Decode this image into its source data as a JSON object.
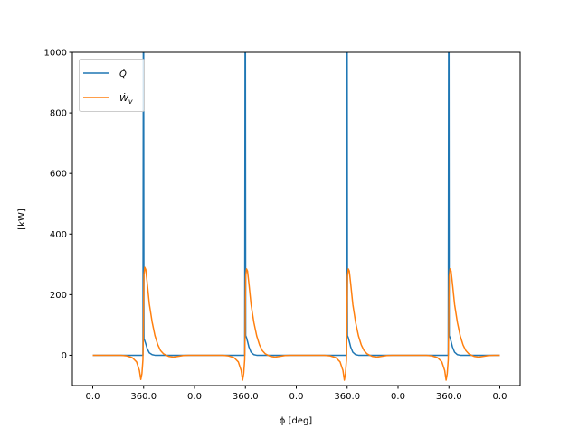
{
  "chart_data": {
    "type": "line",
    "title": "",
    "xlabel": "ϕ [deg]",
    "ylabel": "[kW]",
    "xlim": [
      -144,
      3024
    ],
    "ylim": [
      -100,
      1000
    ],
    "grid": false,
    "legend_position": "top-left",
    "x_ticks": [
      0,
      360,
      720,
      1080,
      1440,
      1800,
      2160,
      2520,
      2880
    ],
    "x_tick_labels": [
      "0.0",
      "360.0",
      "0.0",
      "360.0",
      "0.0",
      "360.0",
      "0.0",
      "360.0",
      "0.0"
    ],
    "y_ticks": [
      0,
      200,
      400,
      600,
      800,
      1000
    ],
    "y_tick_labels": [
      "0",
      "200",
      "400",
      "600",
      "800",
      "1000"
    ],
    "x": [
      0,
      100,
      200,
      240,
      280,
      310,
      330,
      340,
      348,
      355,
      358,
      360,
      362,
      368,
      375,
      385,
      400,
      420,
      440,
      460,
      480,
      500,
      520,
      540,
      570,
      600,
      640,
      680,
      720,
      820,
      920,
      960,
      1000,
      1030,
      1050,
      1060,
      1068,
      1075,
      1078,
      1080,
      1082,
      1088,
      1095,
      1105,
      1120,
      1140,
      1160,
      1180,
      1200,
      1220,
      1240,
      1260,
      1290,
      1320,
      1360,
      1400,
      1440,
      1540,
      1640,
      1680,
      1720,
      1750,
      1770,
      1780,
      1788,
      1795,
      1798,
      1800,
      1802,
      1808,
      1815,
      1825,
      1840,
      1860,
      1880,
      1900,
      1920,
      1940,
      1960,
      1980,
      2010,
      2040,
      2080,
      2120,
      2160,
      2260,
      2360,
      2400,
      2440,
      2470,
      2490,
      2500,
      2508,
      2515,
      2518,
      2520,
      2522,
      2528,
      2535,
      2545,
      2560,
      2580,
      2600,
      2620,
      2640,
      2660,
      2680,
      2700,
      2730,
      2760,
      2800,
      2840,
      2880
    ],
    "series": [
      {
        "name": "Q̇",
        "color": "#1f77b4",
        "values": [
          0,
          0,
          0,
          0,
          0,
          0,
          0,
          0,
          0,
          0,
          1100,
          1100,
          55,
          48,
          38,
          22,
          8,
          2,
          0,
          0,
          0,
          0,
          0,
          0,
          0,
          0,
          0,
          0,
          0,
          0,
          0,
          0,
          0,
          0,
          0,
          0,
          0,
          0,
          1100,
          1100,
          65,
          58,
          46,
          27,
          10,
          2,
          0,
          0,
          0,
          0,
          0,
          0,
          0,
          0,
          0,
          0,
          0,
          0,
          0,
          0,
          0,
          0,
          0,
          0,
          0,
          0,
          1100,
          1100,
          65,
          58,
          46,
          27,
          10,
          2,
          0,
          0,
          0,
          0,
          0,
          0,
          0,
          0,
          0,
          0,
          0,
          0,
          0,
          0,
          0,
          0,
          0,
          0,
          0,
          0,
          1100,
          1100,
          65,
          58,
          46,
          27,
          10,
          2,
          0,
          0,
          0,
          0,
          0,
          0,
          0,
          0,
          0,
          0,
          0
        ]
      },
      {
        "name": "Ẇ",
        "name_subscript": "v",
        "color": "#ff7f0e",
        "values": [
          0,
          0,
          0,
          -2,
          -8,
          -22,
          -50,
          -80,
          -60,
          -15,
          80,
          190,
          265,
          290,
          283,
          240,
          170,
          110,
          65,
          35,
          15,
          5,
          0,
          -4,
          -6,
          -4,
          -1,
          0,
          0,
          0,
          0,
          -2,
          -8,
          -22,
          -50,
          -82,
          -60,
          -15,
          80,
          190,
          260,
          285,
          278,
          236,
          168,
          108,
          64,
          34,
          15,
          5,
          0,
          -4,
          -6,
          -4,
          -1,
          0,
          0,
          0,
          0,
          -2,
          -8,
          -22,
          -50,
          -82,
          -60,
          -15,
          80,
          190,
          260,
          285,
          278,
          236,
          168,
          108,
          64,
          34,
          15,
          5,
          0,
          -4,
          -6,
          -4,
          -1,
          0,
          0,
          0,
          0,
          -2,
          -8,
          -22,
          -50,
          -82,
          -60,
          -15,
          80,
          190,
          260,
          285,
          278,
          236,
          168,
          108,
          64,
          34,
          15,
          5,
          0,
          -4,
          -6,
          -4,
          -1,
          0,
          0
        ]
      }
    ]
  }
}
